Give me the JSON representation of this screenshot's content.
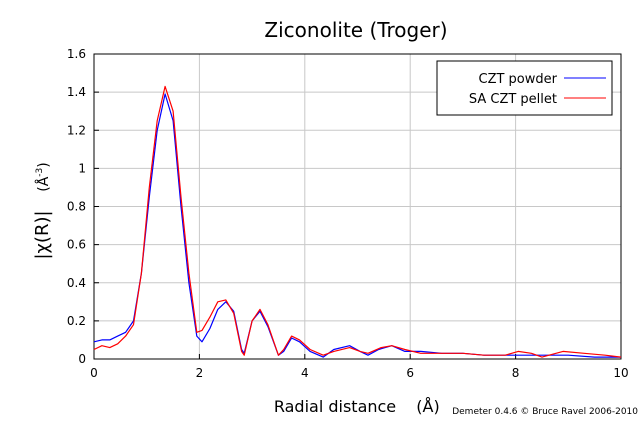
{
  "chart_data": {
    "type": "line",
    "title": "Ziconolite (Troger)",
    "xlabel": "Radial distance",
    "xlabel_unit": "(Å)",
    "ylabel": "|χ(R)|",
    "ylabel_unit": "(Å",
    "ylabel_unit_exp": "-3",
    "ylabel_unit_close": ")",
    "credit": "Demeter 0.4.6 © Bruce Ravel 2006-2010",
    "xlim": [
      0,
      10
    ],
    "ylim": [
      0,
      1.6
    ],
    "xticks": [
      "0",
      "2",
      "4",
      "6",
      "8",
      "10"
    ],
    "yticks": [
      "0",
      "0.2",
      "0.4",
      "0.6",
      "0.8",
      "1",
      "1.2",
      "1.4",
      "1.6"
    ],
    "grid": true,
    "legend_position": "top-right",
    "series": [
      {
        "name": "CZT powder",
        "color": "#0000ff",
        "points": [
          [
            0,
            0.09
          ],
          [
            0.15,
            0.1
          ],
          [
            0.3,
            0.1
          ],
          [
            0.45,
            0.12
          ],
          [
            0.6,
            0.14
          ],
          [
            0.75,
            0.2
          ],
          [
            0.9,
            0.45
          ],
          [
            1.05,
            0.85
          ],
          [
            1.2,
            1.2
          ],
          [
            1.35,
            1.39
          ],
          [
            1.5,
            1.25
          ],
          [
            1.65,
            0.8
          ],
          [
            1.8,
            0.4
          ],
          [
            1.95,
            0.12
          ],
          [
            2.05,
            0.09
          ],
          [
            2.2,
            0.16
          ],
          [
            2.35,
            0.26
          ],
          [
            2.5,
            0.3
          ],
          [
            2.65,
            0.25
          ],
          [
            2.8,
            0.05
          ],
          [
            2.85,
            0.03
          ],
          [
            3.0,
            0.2
          ],
          [
            3.15,
            0.25
          ],
          [
            3.3,
            0.17
          ],
          [
            3.5,
            0.02
          ],
          [
            3.6,
            0.04
          ],
          [
            3.75,
            0.11
          ],
          [
            3.9,
            0.09
          ],
          [
            4.1,
            0.04
          ],
          [
            4.35,
            0.01
          ],
          [
            4.55,
            0.05
          ],
          [
            4.85,
            0.07
          ],
          [
            5.05,
            0.04
          ],
          [
            5.2,
            0.02
          ],
          [
            5.4,
            0.05
          ],
          [
            5.65,
            0.07
          ],
          [
            5.9,
            0.04
          ],
          [
            6.2,
            0.04
          ],
          [
            6.6,
            0.03
          ],
          [
            7.0,
            0.03
          ],
          [
            7.4,
            0.02
          ],
          [
            7.8,
            0.02
          ],
          [
            8.2,
            0.02
          ],
          [
            8.6,
            0.02
          ],
          [
            9.0,
            0.02
          ],
          [
            9.5,
            0.01
          ],
          [
            10,
            0.01
          ]
        ]
      },
      {
        "name": "SA  CZT pellet",
        "color": "#ff0000",
        "points": [
          [
            0,
            0.05
          ],
          [
            0.15,
            0.07
          ],
          [
            0.3,
            0.06
          ],
          [
            0.45,
            0.08
          ],
          [
            0.6,
            0.12
          ],
          [
            0.75,
            0.18
          ],
          [
            0.9,
            0.45
          ],
          [
            1.05,
            0.9
          ],
          [
            1.2,
            1.25
          ],
          [
            1.35,
            1.43
          ],
          [
            1.5,
            1.3
          ],
          [
            1.65,
            0.85
          ],
          [
            1.8,
            0.45
          ],
          [
            1.95,
            0.14
          ],
          [
            2.05,
            0.15
          ],
          [
            2.2,
            0.22
          ],
          [
            2.35,
            0.3
          ],
          [
            2.5,
            0.31
          ],
          [
            2.65,
            0.24
          ],
          [
            2.8,
            0.04
          ],
          [
            2.85,
            0.02
          ],
          [
            3.0,
            0.2
          ],
          [
            3.15,
            0.26
          ],
          [
            3.3,
            0.18
          ],
          [
            3.5,
            0.02
          ],
          [
            3.6,
            0.05
          ],
          [
            3.75,
            0.12
          ],
          [
            3.9,
            0.1
          ],
          [
            4.1,
            0.05
          ],
          [
            4.35,
            0.02
          ],
          [
            4.55,
            0.04
          ],
          [
            4.85,
            0.06
          ],
          [
            5.05,
            0.04
          ],
          [
            5.2,
            0.03
          ],
          [
            5.45,
            0.06
          ],
          [
            5.65,
            0.07
          ],
          [
            5.9,
            0.05
          ],
          [
            6.2,
            0.03
          ],
          [
            6.6,
            0.03
          ],
          [
            7.0,
            0.03
          ],
          [
            7.4,
            0.02
          ],
          [
            7.8,
            0.02
          ],
          [
            8.05,
            0.04
          ],
          [
            8.3,
            0.03
          ],
          [
            8.5,
            0.01
          ],
          [
            8.9,
            0.04
          ],
          [
            9.3,
            0.03
          ],
          [
            9.7,
            0.02
          ],
          [
            10,
            0.01
          ]
        ]
      }
    ]
  }
}
